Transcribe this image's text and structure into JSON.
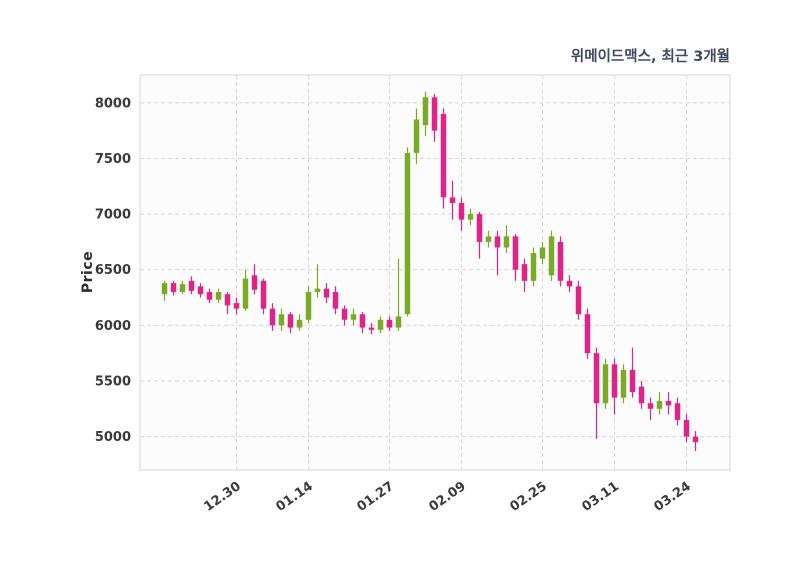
{
  "title": "위메이드맥스, 최근 3개월",
  "chart_data": {
    "type": "candlestick",
    "title": "위메이드맥스, 최근 3개월",
    "xlabel": "",
    "ylabel": "Price",
    "ylim": [
      4700,
      8250
    ],
    "yticks": [
      5000,
      5500,
      6000,
      6500,
      7000,
      7500,
      8000
    ],
    "xtick_labels": [
      "12.30",
      "01.14",
      "01.27",
      "02.09",
      "02.25",
      "03.11",
      "03.24"
    ],
    "xtick_indices": [
      8,
      16,
      25,
      33,
      42,
      50,
      58
    ],
    "grid": true,
    "legend": "none",
    "up_color": "#7aab27",
    "down_color": "#e02487",
    "candles_format": [
      "open",
      "high",
      "low",
      "close"
    ],
    "candles": [
      [
        6280,
        6400,
        6220,
        6380
      ],
      [
        6380,
        6400,
        6270,
        6300
      ],
      [
        6300,
        6400,
        6280,
        6370
      ],
      [
        6400,
        6440,
        6280,
        6310
      ],
      [
        6350,
        6380,
        6250,
        6280
      ],
      [
        6300,
        6330,
        6200,
        6230
      ],
      [
        6230,
        6330,
        6200,
        6300
      ],
      [
        6280,
        6300,
        6100,
        6180
      ],
      [
        6200,
        6250,
        6100,
        6150
      ],
      [
        6150,
        6500,
        6130,
        6420
      ],
      [
        6450,
        6550,
        6280,
        6320
      ],
      [
        6400,
        6420,
        6100,
        6150
      ],
      [
        6150,
        6200,
        5950,
        6000
      ],
      [
        6000,
        6150,
        5950,
        6100
      ],
      [
        6100,
        6120,
        5930,
        5980
      ],
      [
        5980,
        6100,
        5950,
        6050
      ],
      [
        6050,
        6350,
        6020,
        6300
      ],
      [
        6300,
        6550,
        6250,
        6330
      ],
      [
        6330,
        6380,
        6200,
        6250
      ],
      [
        6300,
        6350,
        6100,
        6150
      ],
      [
        6150,
        6180,
        6000,
        6050
      ],
      [
        6050,
        6150,
        6000,
        6100
      ],
      [
        6100,
        6120,
        5930,
        5980
      ],
      [
        5980,
        6020,
        5920,
        5960
      ],
      [
        5960,
        6080,
        5930,
        6050
      ],
      [
        6050,
        6080,
        5950,
        5980
      ],
      [
        5980,
        6600,
        5950,
        6080
      ],
      [
        6100,
        7600,
        6080,
        7550
      ],
      [
        7550,
        7950,
        7450,
        7850
      ],
      [
        7800,
        8100,
        7700,
        8050
      ],
      [
        8050,
        8080,
        7650,
        7750
      ],
      [
        7900,
        7950,
        7050,
        7150
      ],
      [
        7150,
        7300,
        6950,
        7100
      ],
      [
        7100,
        7150,
        6850,
        6950
      ],
      [
        6950,
        7050,
        6900,
        7000
      ],
      [
        7000,
        7020,
        6600,
        6750
      ],
      [
        6750,
        6850,
        6700,
        6800
      ],
      [
        6800,
        6850,
        6450,
        6700
      ],
      [
        6700,
        6900,
        6650,
        6800
      ],
      [
        6800,
        6820,
        6400,
        6500
      ],
      [
        6550,
        6600,
        6300,
        6400
      ],
      [
        6400,
        6700,
        6350,
        6650
      ],
      [
        6600,
        6750,
        6550,
        6700
      ],
      [
        6450,
        6850,
        6400,
        6800
      ],
      [
        6750,
        6800,
        6350,
        6400
      ],
      [
        6400,
        6450,
        6300,
        6350
      ],
      [
        6350,
        6400,
        6050,
        6100
      ],
      [
        6100,
        6150,
        5700,
        5750
      ],
      [
        5750,
        5800,
        4980,
        5300
      ],
      [
        5300,
        5700,
        5250,
        5650
      ],
      [
        5650,
        5700,
        5200,
        5350
      ],
      [
        5350,
        5650,
        5300,
        5600
      ],
      [
        5600,
        5800,
        5350,
        5400
      ],
      [
        5450,
        5500,
        5250,
        5300
      ],
      [
        5300,
        5350,
        5150,
        5250
      ],
      [
        5250,
        5400,
        5200,
        5320
      ],
      [
        5320,
        5400,
        5200,
        5280
      ],
      [
        5300,
        5350,
        5100,
        5150
      ],
      [
        5150,
        5200,
        4950,
        5000
      ],
      [
        5000,
        5050,
        4870,
        4950
      ]
    ]
  }
}
